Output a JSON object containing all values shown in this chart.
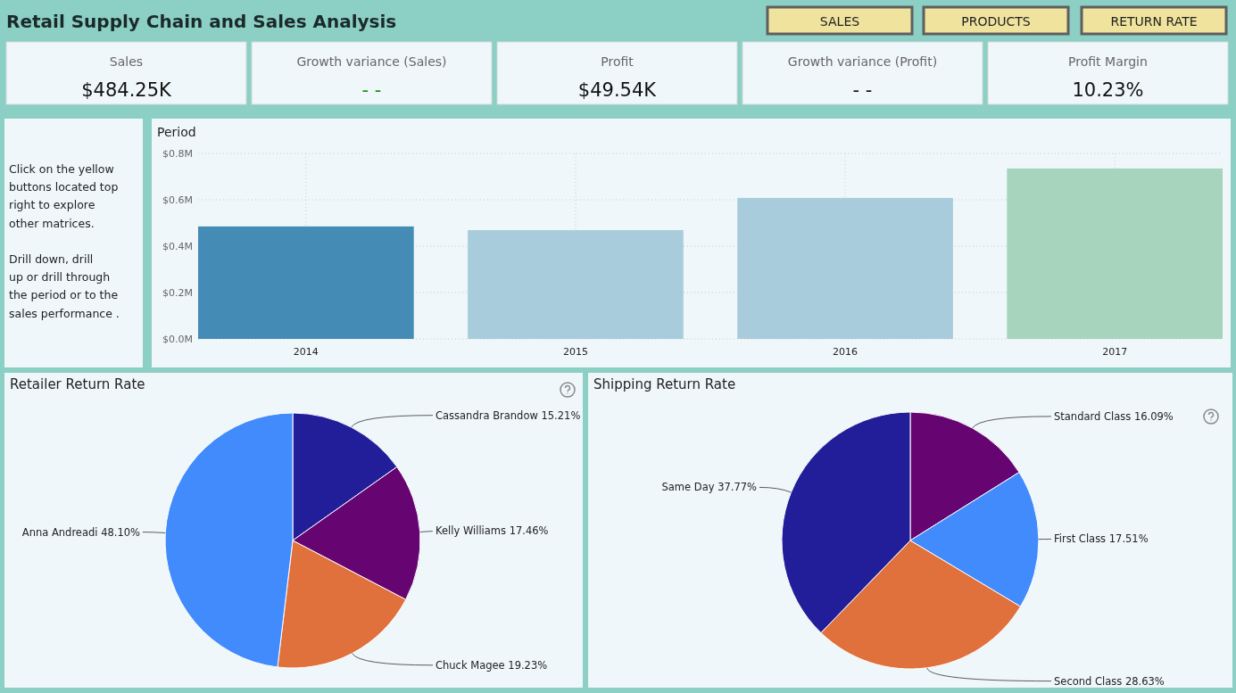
{
  "chart_data": [
    {
      "type": "other",
      "title": "Retail Supply Chain and Sales Analysis",
      "annotations": [
        "SALES",
        "PRODUCTS",
        "RETURN RATE"
      ]
    },
    {
      "type": "other",
      "annotations": [
        "Sales",
        "$484.25K",
        "Growth variance (Sales)",
        "- -",
        "Profit",
        "$49.54K",
        "Growth variance (Profit)",
        "- -",
        "Profit Margin",
        "10.23%"
      ]
    },
    {
      "type": "other",
      "annotations": [
        "Click on the yellow buttons located top right to explore other matrices.",
        "Drill down,  drill up or drill through the period or to the sales performance ."
      ]
    },
    {
      "type": "bar",
      "title": "Period",
      "categories": [
        "2014",
        "2015",
        "2016",
        "2017"
      ],
      "values": [
        0.485,
        0.469,
        0.608,
        0.735
      ],
      "colors": [
        "#448cb5",
        "#a8ccdc",
        "#a8ccdc",
        "#a6d4bc"
      ],
      "ylim": [
        0,
        0.8
      ],
      "yticks": [
        {
          "value": 0,
          "label": "$0.0M"
        },
        {
          "value": 0.2,
          "label": "$0.2M"
        },
        {
          "value": 0.4,
          "label": "$0.4M"
        },
        {
          "value": 0.6,
          "label": "$0.6M"
        },
        {
          "value": 0.8,
          "label": "$0.8M"
        }
      ],
      "grid": true
    },
    {
      "type": "pie",
      "title": "Retailer Return Rate",
      "categories": [
        "Cassandra Brandow",
        "Kelly Williams",
        "Chuck Magee",
        "Anna Andreadi"
      ],
      "values": [
        15.21,
        17.46,
        19.23,
        48.1
      ],
      "value_labels": [
        "15.21%",
        "17.46%",
        "19.23%",
        "48.10%"
      ],
      "colors": [
        "#221e99",
        "#660572",
        "#e0703c",
        "#418bfc"
      ]
    },
    {
      "type": "pie",
      "title": "Shipping Return Rate",
      "categories": [
        "Standard Class",
        "First Class",
        "Second Class",
        "Same Day"
      ],
      "values": [
        16.09,
        17.51,
        28.63,
        37.77
      ],
      "value_labels": [
        "16.09%",
        "17.51%",
        "28.63%",
        "37.77%"
      ],
      "colors": [
        "#660572",
        "#418bfc",
        "#e0703c",
        "#221e99"
      ]
    }
  ]
}
